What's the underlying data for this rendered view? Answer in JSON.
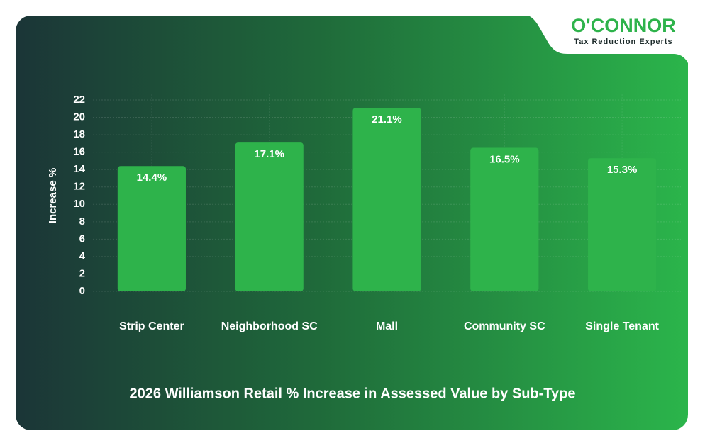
{
  "logo": {
    "name": "O'CONNOR",
    "tagline": "Tax Reduction Experts"
  },
  "chart_data": {
    "type": "bar",
    "title": "2026 Williamson Retail % Increase in Assessed Value by Sub-Type",
    "y_label": "Increase %",
    "categories": [
      "Strip Center",
      "Neighborhood SC",
      "Mall",
      "Community SC",
      "Single Tenant"
    ],
    "values": [
      14.4,
      17.1,
      21.1,
      16.5,
      15.3
    ],
    "value_labels": [
      "14.4%",
      "17.1%",
      "21.1%",
      "16.5%",
      "15.3%"
    ],
    "color": "#2eb34b",
    "ylim": [
      0,
      22
    ],
    "yticks": [
      0,
      2,
      4,
      6,
      8,
      10,
      12,
      14,
      16,
      18,
      20,
      22
    ],
    "grid": true
  }
}
